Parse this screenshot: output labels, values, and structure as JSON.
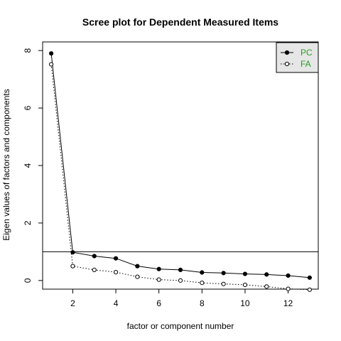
{
  "chart_data": {
    "type": "line",
    "title": "Scree plot for Dependent Measured Items",
    "xlabel": "factor or component number",
    "ylabel": "Eigen values of factors and components",
    "xlim": [
      0.6,
      13.4
    ],
    "ylim": [
      -0.3,
      8.3
    ],
    "x_ticks": [
      2,
      4,
      6,
      8,
      10,
      12
    ],
    "y_ticks": [
      0,
      2,
      4,
      6,
      8
    ],
    "reference_line": 1,
    "grid": false,
    "legend_position": "top-right",
    "x": [
      1,
      2,
      3,
      4,
      5,
      6,
      7,
      8,
      9,
      10,
      11,
      12,
      13
    ],
    "series": [
      {
        "name": "PC",
        "values": [
          7.9,
          0.98,
          0.85,
          0.77,
          0.5,
          0.4,
          0.37,
          0.28,
          0.26,
          0.23,
          0.21,
          0.17,
          0.1
        ],
        "line": "solid",
        "marker": "filled-circle",
        "color": "#000000",
        "legend_text_color": "#22a022"
      },
      {
        "name": "FA",
        "values": [
          7.52,
          0.5,
          0.37,
          0.29,
          0.13,
          0.03,
          0.0,
          -0.08,
          -0.12,
          -0.15,
          -0.21,
          -0.29,
          -0.32
        ],
        "line": "dotted",
        "marker": "open-circle",
        "color": "#000000",
        "legend_text_color": "#22a022"
      }
    ]
  }
}
